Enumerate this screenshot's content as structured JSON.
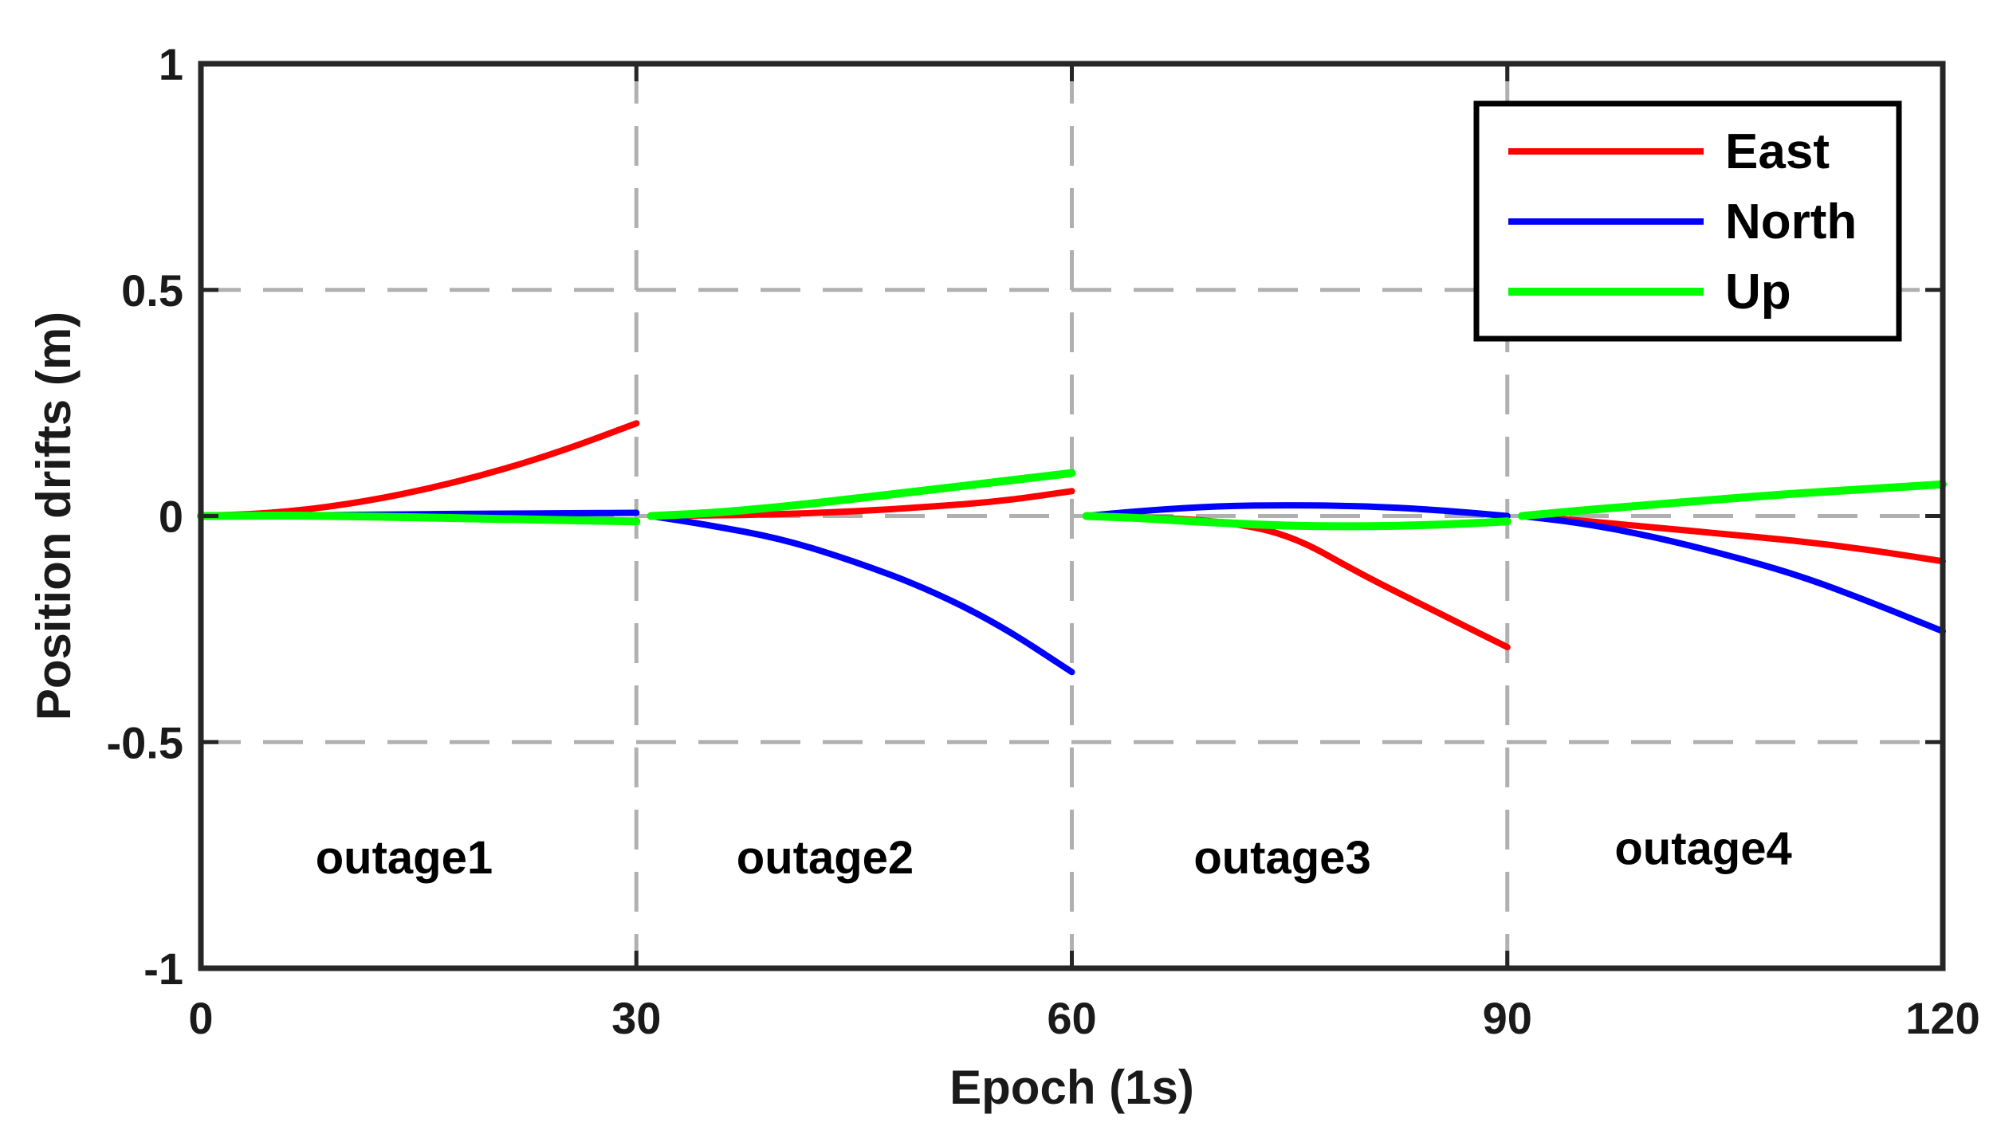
{
  "chart_data": {
    "type": "line",
    "title": "",
    "xlabel": "Epoch (1s)",
    "ylabel": "Position drifts (m)",
    "xlim": [
      0,
      120
    ],
    "ylim": [
      -1,
      1
    ],
    "xticks": [
      0,
      30,
      60,
      90,
      120
    ],
    "xtick_labels": [
      "0",
      "30",
      "60",
      "90",
      "120"
    ],
    "yticks": [
      1,
      0.5,
      0,
      -0.5,
      -1
    ],
    "ytick_labels": [
      "1",
      "0.5",
      "0",
      "-0.5",
      "-1"
    ],
    "grid": true,
    "legend_position": "top-right",
    "series": [
      {
        "name": "East",
        "color": "#ff0000",
        "segments": [
          {
            "x": [
              0,
              5,
              10,
              15,
              20,
              25,
              30
            ],
            "y": [
              0,
              0.006,
              0.025,
              0.055,
              0.095,
              0.145,
              0.205
            ]
          },
          {
            "x": [
              31,
              35,
              40,
              45,
              50,
              55,
              60
            ],
            "y": [
              0,
              0.001,
              0.004,
              0.01,
              0.02,
              0.032,
              0.055
            ]
          },
          {
            "x": [
              61,
              65,
              70,
              75,
              80,
              85,
              90
            ],
            "y": [
              0,
              -0.003,
              -0.01,
              -0.04,
              -0.13,
              -0.21,
              -0.29
            ]
          },
          {
            "x": [
              91,
              95,
              100,
              105,
              110,
              115,
              120
            ],
            "y": [
              0,
              -0.01,
              -0.025,
              -0.04,
              -0.055,
              -0.075,
              -0.1
            ]
          }
        ]
      },
      {
        "name": "North",
        "color": "#0000ff",
        "segments": [
          {
            "x": [
              0,
              5,
              10,
              15,
              20,
              25,
              30
            ],
            "y": [
              0,
              0.001,
              0.002,
              0.004,
              0.005,
              0.006,
              0.007
            ]
          },
          {
            "x": [
              31,
              35,
              40,
              45,
              50,
              55,
              60
            ],
            "y": [
              0,
              -0.02,
              -0.05,
              -0.1,
              -0.16,
              -0.24,
              -0.345
            ]
          },
          {
            "x": [
              61,
              65,
              70,
              75,
              80,
              85,
              90
            ],
            "y": [
              0,
              0.012,
              0.022,
              0.024,
              0.022,
              0.014,
              0
            ]
          },
          {
            "x": [
              91,
              95,
              100,
              105,
              110,
              115,
              120
            ],
            "y": [
              0,
              -0.015,
              -0.045,
              -0.085,
              -0.13,
              -0.19,
              -0.255
            ]
          }
        ]
      },
      {
        "name": "Up",
        "color": "#00ff00",
        "segments": [
          {
            "x": [
              0,
              5,
              10,
              15,
              20,
              25,
              30
            ],
            "y": [
              0,
              0.001,
              0.0,
              -0.003,
              -0.006,
              -0.009,
              -0.012
            ]
          },
          {
            "x": [
              31,
              35,
              40,
              45,
              50,
              55,
              60
            ],
            "y": [
              0,
              0.006,
              0.02,
              0.038,
              0.057,
              0.076,
              0.095
            ]
          },
          {
            "x": [
              61,
              65,
              70,
              75,
              80,
              85,
              90
            ],
            "y": [
              0,
              -0.005,
              -0.015,
              -0.022,
              -0.023,
              -0.02,
              -0.012
            ]
          },
          {
            "x": [
              91,
              95,
              100,
              105,
              110,
              115,
              120
            ],
            "y": [
              0,
              0.012,
              0.025,
              0.038,
              0.05,
              0.06,
              0.07
            ]
          }
        ]
      }
    ],
    "annotations": [
      {
        "text": "outage1",
        "x": 14.0,
        "y": -0.79
      },
      {
        "text": "outage2",
        "x": 43.0,
        "y": -0.79
      },
      {
        "text": "outage3",
        "x": 74.5,
        "y": -0.79
      },
      {
        "text": "outage4",
        "x": 103.5,
        "y": -0.77
      }
    ]
  }
}
